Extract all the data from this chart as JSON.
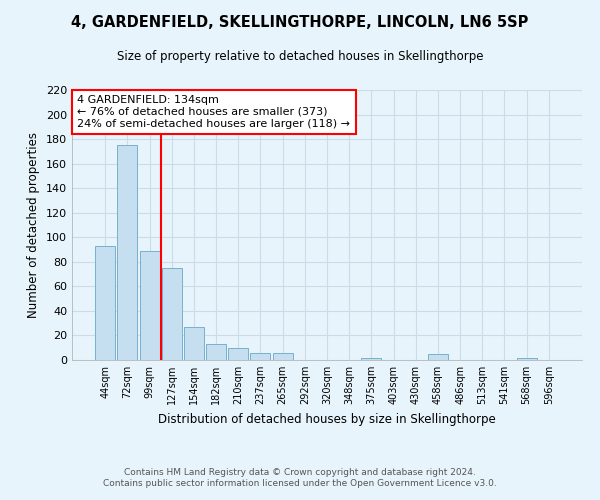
{
  "title": "4, GARDENFIELD, SKELLINGTHORPE, LINCOLN, LN6 5SP",
  "subtitle": "Size of property relative to detached houses in Skellingthorpe",
  "xlabel": "Distribution of detached houses by size in Skellingthorpe",
  "ylabel": "Number of detached properties",
  "bar_color": "#c6dff0",
  "bar_edge_color": "#7ab0cc",
  "vline_color": "red",
  "vline_index": 3,
  "ylim": [
    0,
    220
  ],
  "yticks": [
    0,
    20,
    40,
    60,
    80,
    100,
    120,
    140,
    160,
    180,
    200,
    220
  ],
  "categories": [
    "44sqm",
    "72sqm",
    "99sqm",
    "127sqm",
    "154sqm",
    "182sqm",
    "210sqm",
    "237sqm",
    "265sqm",
    "292sqm",
    "320sqm",
    "348sqm",
    "375sqm",
    "403sqm",
    "430sqm",
    "458sqm",
    "486sqm",
    "513sqm",
    "541sqm",
    "568sqm",
    "596sqm"
  ],
  "values": [
    93,
    175,
    89,
    75,
    27,
    13,
    10,
    6,
    6,
    0,
    0,
    0,
    2,
    0,
    0,
    5,
    0,
    0,
    0,
    2,
    0
  ],
  "annotation_title": "4 GARDENFIELD: 134sqm",
  "annotation_line1": "← 76% of detached houses are smaller (373)",
  "annotation_line2": "24% of semi-detached houses are larger (118) →",
  "annotation_box_color": "white",
  "annotation_box_edgecolor": "red",
  "footer_line1": "Contains HM Land Registry data © Crown copyright and database right 2024.",
  "footer_line2": "Contains public sector information licensed under the Open Government Licence v3.0.",
  "background_color": "#e8f4fb",
  "grid_color": "#c8dcea"
}
